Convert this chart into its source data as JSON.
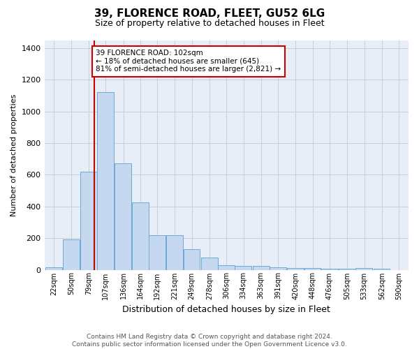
{
  "title": "39, FLORENCE ROAD, FLEET, GU52 6LG",
  "subtitle": "Size of property relative to detached houses in Fleet",
  "xlabel": "Distribution of detached houses by size in Fleet",
  "ylabel": "Number of detached properties",
  "footnote1": "Contains HM Land Registry data © Crown copyright and database right 2024.",
  "footnote2": "Contains public sector information licensed under the Open Government Licence v3.0.",
  "annotation_line1": "39 FLORENCE ROAD: 102sqm",
  "annotation_line2": "← 18% of detached houses are smaller (645)",
  "annotation_line3": "81% of semi-detached houses are larger (2,821) →",
  "bar_color": "#c5d8f0",
  "bar_edge_color": "#6aaad4",
  "vline_color": "#cc0000",
  "vline_x": 102,
  "annotation_box_color": "#cc0000",
  "categories": [
    "22sqm",
    "50sqm",
    "79sqm",
    "107sqm",
    "136sqm",
    "164sqm",
    "192sqm",
    "221sqm",
    "249sqm",
    "278sqm",
    "306sqm",
    "334sqm",
    "363sqm",
    "391sqm",
    "420sqm",
    "448sqm",
    "476sqm",
    "505sqm",
    "533sqm",
    "562sqm",
    "590sqm"
  ],
  "bin_edges": [
    22,
    50,
    79,
    107,
    136,
    164,
    192,
    221,
    249,
    278,
    306,
    334,
    363,
    391,
    420,
    448,
    476,
    505,
    533,
    562,
    590
  ],
  "bin_width": 28,
  "values": [
    15,
    190,
    620,
    1120,
    670,
    425,
    220,
    220,
    130,
    75,
    30,
    25,
    25,
    15,
    10,
    10,
    5,
    5,
    10,
    5,
    0
  ],
  "ylim": [
    0,
    1450
  ],
  "yticks": [
    0,
    200,
    400,
    600,
    800,
    1000,
    1200,
    1400
  ],
  "fig_bg_color": "#ffffff",
  "plot_bg_color": "#e8eef8",
  "grid_color": "#c8d0e0",
  "title_fontsize": 11,
  "subtitle_fontsize": 9,
  "ylabel_fontsize": 8,
  "xlabel_fontsize": 9,
  "ytick_fontsize": 8,
  "xtick_fontsize": 7,
  "footnote_fontsize": 6.5
}
